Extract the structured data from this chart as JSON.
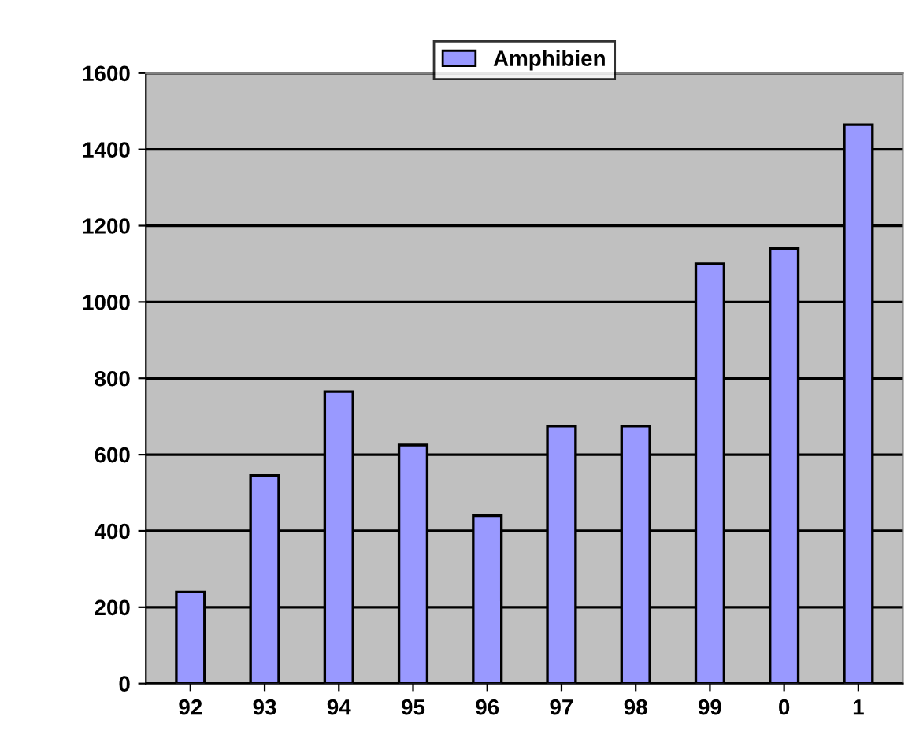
{
  "chart_data": {
    "type": "bar",
    "categories": [
      "92",
      "93",
      "94",
      "95",
      "96",
      "97",
      "98",
      "99",
      "0",
      "1"
    ],
    "series": [
      {
        "name": "Amphibien",
        "color": "#9999ff",
        "values": [
          240,
          545,
          765,
          625,
          440,
          675,
          675,
          1100,
          1140,
          1465
        ]
      }
    ],
    "ylim": [
      0,
      1600
    ],
    "yticks": [
      0,
      200,
      400,
      600,
      800,
      1000,
      1200,
      1400,
      1600
    ],
    "grid": "y",
    "legend": "top"
  }
}
